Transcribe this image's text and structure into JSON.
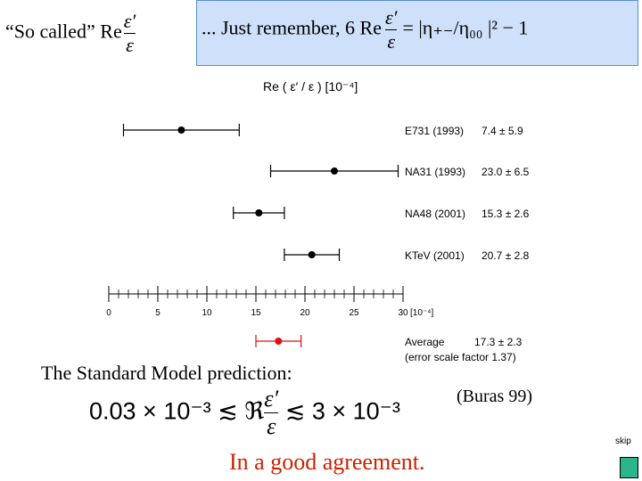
{
  "header": {
    "so_called": "“So called” Re",
    "eps_prime": "ε′",
    "eps": "ε",
    "remember_prefix": "... Just remember, 6 Re",
    "remember_rhs": "= |η₊₋/η₀₀ |² − 1"
  },
  "chart_data": {
    "type": "scatter",
    "title": "Re ( ε′ / ε ) [10⁻⁴]",
    "xlabel": "[10⁻⁴]",
    "xlim": [
      0,
      30
    ],
    "x_ticks": [
      0,
      5,
      10,
      15,
      20,
      25,
      30
    ],
    "series": [
      {
        "name": "E731 (1993)",
        "value_text": "7.4 ± 5.9",
        "value": 7.4,
        "error": 5.9,
        "color": "#000000"
      },
      {
        "name": "NA31 (1993)",
        "value_text": "23.0 ± 6.5",
        "value": 23.0,
        "error": 6.5,
        "color": "#000000"
      },
      {
        "name": "NA48 (2001)",
        "value_text": "15.3 ± 2.6",
        "value": 15.3,
        "error": 2.6,
        "color": "#000000"
      },
      {
        "name": "KTeV (2001)",
        "value_text": "20.7 ± 2.8",
        "value": 20.7,
        "error": 2.8,
        "color": "#000000"
      }
    ],
    "average": {
      "label": "Average",
      "value_text": "17.3 ± 2.3",
      "note": "(error scale factor 1.37)",
      "value": 17.3,
      "error": 2.3,
      "color": "#dd1111"
    }
  },
  "prediction": {
    "label": "The Standard Model prediction:",
    "low": "0.03 × 10⁻³",
    "rel1": "≲",
    "re_symbol": "ℜ",
    "eps_prime": "ε′",
    "eps": "ε",
    "rel2": "≲",
    "high": "3 × 10⁻³",
    "citation": "(Buras 99)"
  },
  "conclusion": "In a good agreement.",
  "nav": {
    "skip_label": "skip"
  }
}
